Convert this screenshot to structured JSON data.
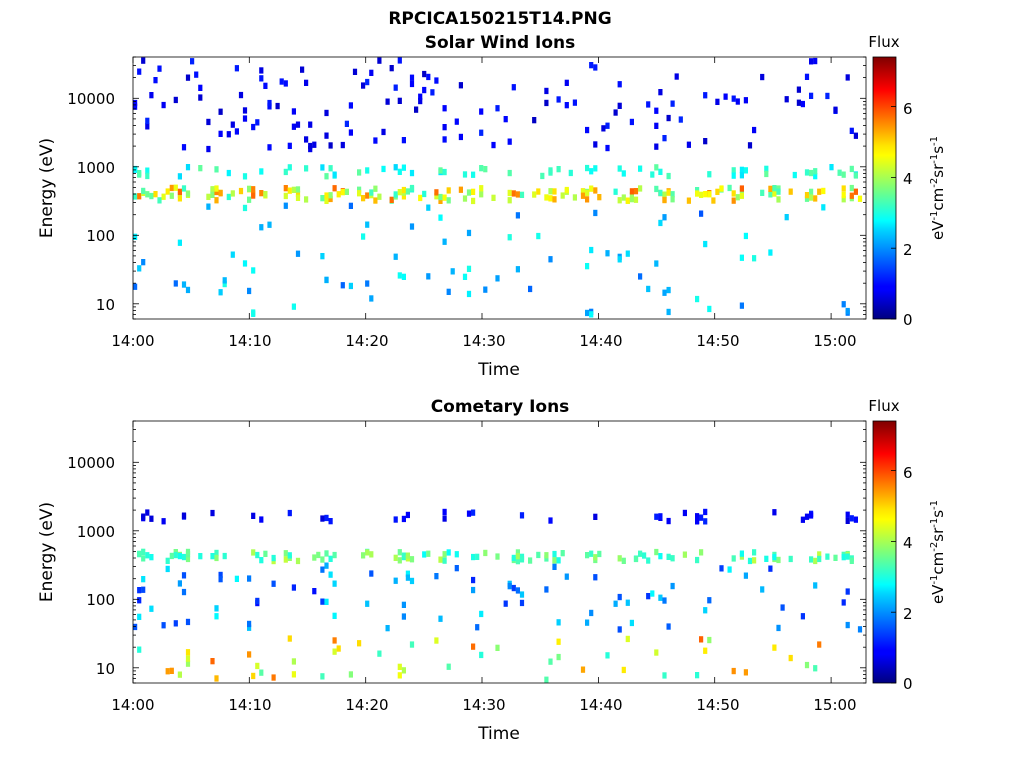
{
  "figure": {
    "suptitle": "RPCICA150215T14.PNG"
  },
  "chart_data": [
    {
      "type": "heatmap",
      "title": "Solar Wind Ions",
      "xlabel": "Time",
      "ylabel": "Energy (eV)",
      "x_ticks": [
        "14:00",
        "14:10",
        "14:20",
        "14:30",
        "14:40",
        "14:50",
        "15:00"
      ],
      "y_ticks": [
        "10",
        "100",
        "1000",
        "10000"
      ],
      "y_scale": "log",
      "ylim": [
        6,
        40000
      ],
      "xlim_minutes": [
        0,
        63
      ],
      "colorbar": {
        "title": "Flux",
        "label": "eV-1cm-2sr-1s-1",
        "range": [
          0,
          7.4
        ],
        "ticks": [
          "0",
          "2",
          "4",
          "6"
        ]
      },
      "features": [
        {
          "description": "solar wind peak band",
          "energy_range": [
            350,
            550
          ],
          "flux_range": [
            3,
            5.8
          ]
        },
        {
          "description": "secondary band",
          "energy_range": [
            800,
            1100
          ],
          "flux_range": [
            2.5,
            3.5
          ]
        },
        {
          "description": "sparse high energy counts",
          "energy_range": [
            2000,
            40000
          ],
          "flux_range": [
            0.5,
            1.2
          ]
        },
        {
          "description": "low energy counts",
          "energy_range": [
            6,
            300
          ],
          "flux_range": [
            1.5,
            3
          ]
        }
      ]
    },
    {
      "type": "heatmap",
      "title": "Cometary Ions",
      "xlabel": "Time",
      "ylabel": "Energy (eV)",
      "x_ticks": [
        "14:00",
        "14:10",
        "14:20",
        "14:30",
        "14:40",
        "14:50",
        "15:00"
      ],
      "y_ticks": [
        "10",
        "100",
        "1000",
        "10000"
      ],
      "y_scale": "log",
      "ylim": [
        6,
        40000
      ],
      "xlim_minutes": [
        0,
        63
      ],
      "colorbar": {
        "title": "Flux",
        "label": "eV-1cm-2sr-1s-1",
        "range": [
          0,
          7.4
        ],
        "ticks": [
          "0",
          "2",
          "4",
          "6"
        ]
      },
      "features": [
        {
          "description": "band near 500 eV",
          "energy_range": [
            400,
            550
          ],
          "flux_range": [
            2.8,
            4.2
          ]
        },
        {
          "description": "scattered mid energy",
          "energy_range": [
            40,
            350
          ],
          "flux_range": [
            1,
            2.8
          ]
        },
        {
          "description": "low energy bursts",
          "energy_range": [
            6,
            30
          ],
          "flux_range": [
            3,
            5.8
          ]
        },
        {
          "description": "sparse high energy",
          "energy_range": [
            1500,
            2100
          ],
          "flux_range": [
            0.6,
            1.2
          ]
        }
      ]
    }
  ]
}
